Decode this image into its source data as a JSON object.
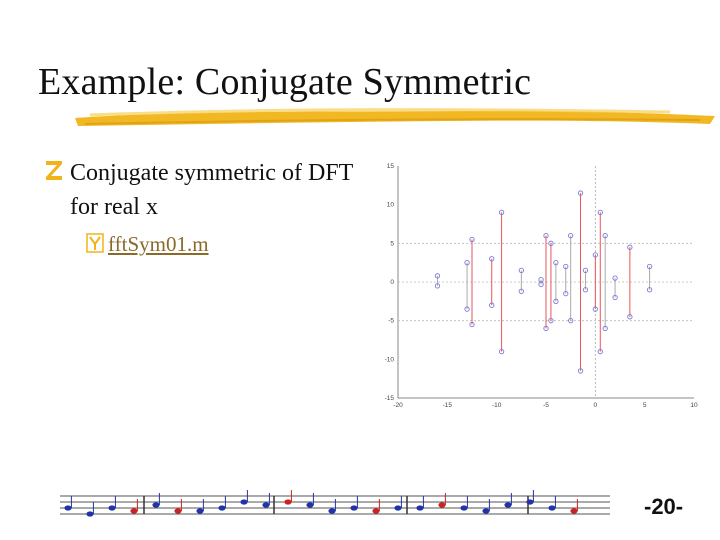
{
  "slide": {
    "title": "Example: Conjugate Symmetric",
    "bullet": "Conjugate symmetric of DFT for real x",
    "subbullet": "fftSym01.m",
    "page_number": "-20-"
  },
  "colors": {
    "accent": "#f0b418",
    "link": "#8a6a2a",
    "bullet_mark": "#f0b418",
    "stem_red": "#e8555a",
    "marker_blue": "#7b7bd6"
  },
  "chart_data": {
    "type": "scatter",
    "title": "",
    "xlabel": "",
    "ylabel": "",
    "xlim": [
      -20,
      10
    ],
    "ylim": [
      -15,
      15
    ],
    "x_ticks": [
      -20,
      -15,
      -10,
      -5,
      0,
      5,
      10
    ],
    "y_ticks": [
      -15,
      -10,
      -5,
      0,
      5,
      10,
      15
    ],
    "grid": "dashed lines at x=0 and y=±5",
    "stems": [
      {
        "x": -16,
        "y1": 0.8,
        "y2": -0.5,
        "color": "gray"
      },
      {
        "x": -13,
        "y1": 2.5,
        "y2": -3.5,
        "color": "gray"
      },
      {
        "x": -12.5,
        "y1": 5.5,
        "y2": -5.5,
        "color": "red"
      },
      {
        "x": -10.5,
        "y1": 3,
        "y2": -3,
        "color": "red"
      },
      {
        "x": -9.5,
        "y1": 9,
        "y2": -9,
        "color": "red"
      },
      {
        "x": -7.5,
        "y1": 1.5,
        "y2": -1.2,
        "color": "gray"
      },
      {
        "x": -5.5,
        "y1": 0.3,
        "y2": -0.3,
        "color": "gray"
      },
      {
        "x": -5,
        "y1": 6,
        "y2": -6,
        "color": "red"
      },
      {
        "x": -4.5,
        "y1": 5,
        "y2": -5,
        "color": "red"
      },
      {
        "x": -4,
        "y1": 2.5,
        "y2": -2.5,
        "color": "gray"
      },
      {
        "x": -3,
        "y1": 2,
        "y2": -1.5,
        "color": "gray"
      },
      {
        "x": -2.5,
        "y1": 6,
        "y2": -5,
        "color": "gray"
      },
      {
        "x": -1.5,
        "y1": 11.5,
        "y2": -11.5,
        "color": "red"
      },
      {
        "x": -1,
        "y1": 1.5,
        "y2": -1,
        "color": "gray"
      },
      {
        "x": 0,
        "y1": 3.5,
        "y2": -3.5,
        "color": "red"
      },
      {
        "x": 0.5,
        "y1": 9,
        "y2": -9,
        "color": "red"
      },
      {
        "x": 1,
        "y1": 6,
        "y2": -6,
        "color": "gray"
      },
      {
        "x": 2,
        "y1": 0.5,
        "y2": -2,
        "color": "gray"
      },
      {
        "x": 3.5,
        "y1": 4.5,
        "y2": -4.5,
        "color": "red"
      },
      {
        "x": 5.5,
        "y1": 2,
        "y2": -1,
        "color": "gray"
      }
    ]
  }
}
